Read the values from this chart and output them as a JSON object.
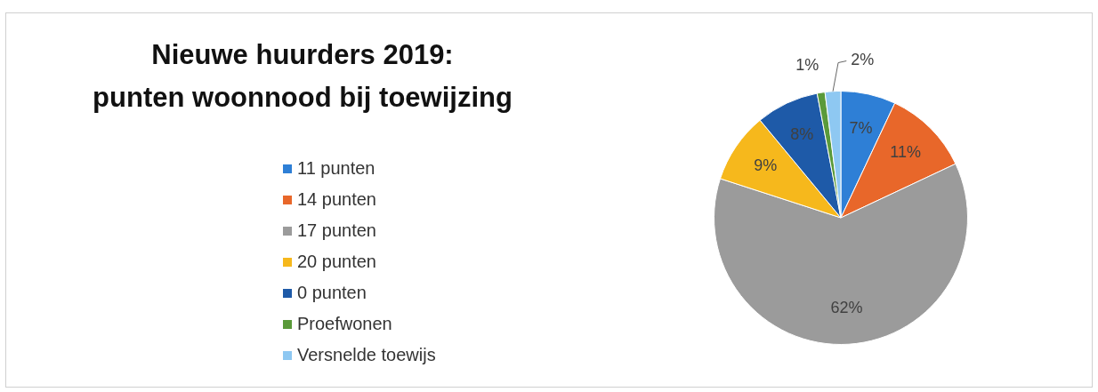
{
  "chart_data": {
    "type": "pie",
    "title": "Nieuwe huurders 2019:\npunten woonnood bij toewijzing",
    "categories": [
      "11 punten",
      "14 punten",
      "17 punten",
      "20 punten",
      "0 punten",
      "Proefwonen",
      "Versnelde toewijs"
    ],
    "values": [
      7,
      11,
      62,
      9,
      8,
      1,
      2
    ],
    "colors": [
      "#2e7fd6",
      "#e8672a",
      "#9b9b9b",
      "#f6b81c",
      "#1e5aa8",
      "#5a9a3a",
      "#8ec8f2"
    ],
    "value_labels": [
      "7%",
      "11%",
      "62%",
      "9%",
      "8%",
      "1%",
      "2%"
    ],
    "legend": "left"
  }
}
